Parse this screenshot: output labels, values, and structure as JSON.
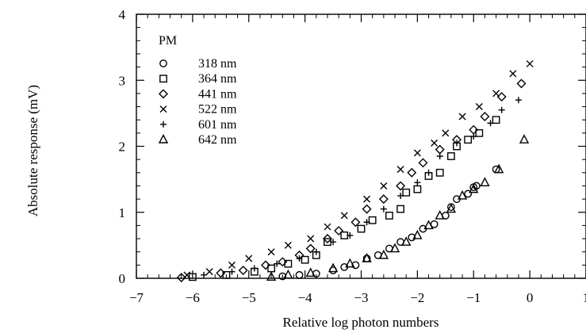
{
  "chart_data": {
    "type": "scatter",
    "title": "",
    "xlabel": "Relative log photon numbers",
    "ylabel": "Absolute response (mV)",
    "xlim": [
      -7,
      1
    ],
    "ylim": [
      0,
      4
    ],
    "x_ticks": [
      -7,
      -6,
      -5,
      -4,
      -3,
      -2,
      -1,
      0,
      1
    ],
    "x_tick_labels": [
      "−7",
      "−6",
      "−5",
      "−4",
      "−3",
      "−2",
      "−1",
      "0",
      "1"
    ],
    "y_ticks": [
      0,
      1,
      2,
      3,
      4
    ],
    "y_tick_labels": [
      "0",
      "1",
      "2",
      "3",
      "4"
    ],
    "grid": false,
    "legend": {
      "title": "PM",
      "placement": "top-left"
    },
    "series": [
      {
        "name": "318 nm",
        "marker": "circle",
        "points": [
          [
            -4.4,
            0.03
          ],
          [
            -4.1,
            0.05
          ],
          [
            -3.8,
            0.07
          ],
          [
            -3.5,
            0.12
          ],
          [
            -3.3,
            0.17
          ],
          [
            -3.1,
            0.2
          ],
          [
            -2.9,
            0.3
          ],
          [
            -2.7,
            0.35
          ],
          [
            -2.5,
            0.45
          ],
          [
            -2.3,
            0.55
          ],
          [
            -2.1,
            0.62
          ],
          [
            -1.9,
            0.75
          ],
          [
            -1.7,
            0.82
          ],
          [
            -1.5,
            0.95
          ],
          [
            -1.4,
            1.08
          ],
          [
            -1.3,
            1.2
          ],
          [
            -1.1,
            1.28
          ],
          [
            -1.0,
            1.38
          ],
          [
            -0.95,
            1.4
          ],
          [
            -0.6,
            1.65
          ]
        ]
      },
      {
        "name": "364 nm",
        "marker": "square",
        "points": [
          [
            -6.0,
            0.02
          ],
          [
            -5.4,
            0.05
          ],
          [
            -4.9,
            0.1
          ],
          [
            -4.6,
            0.15
          ],
          [
            -4.3,
            0.22
          ],
          [
            -4.0,
            0.28
          ],
          [
            -3.8,
            0.35
          ],
          [
            -3.6,
            0.55
          ],
          [
            -3.3,
            0.65
          ],
          [
            -3.0,
            0.75
          ],
          [
            -2.8,
            0.88
          ],
          [
            -2.5,
            0.95
          ],
          [
            -2.3,
            1.05
          ],
          [
            -2.2,
            1.3
          ],
          [
            -2.0,
            1.35
          ],
          [
            -1.8,
            1.55
          ],
          [
            -1.6,
            1.6
          ],
          [
            -1.4,
            1.85
          ],
          [
            -1.3,
            2.0
          ],
          [
            -1.1,
            2.1
          ],
          [
            -0.9,
            2.2
          ],
          [
            -0.6,
            2.4
          ]
        ]
      },
      {
        "name": "441 nm",
        "marker": "diamond",
        "points": [
          [
            -6.2,
            0.01
          ],
          [
            -5.5,
            0.08
          ],
          [
            -5.1,
            0.12
          ],
          [
            -4.7,
            0.2
          ],
          [
            -4.4,
            0.25
          ],
          [
            -4.1,
            0.35
          ],
          [
            -3.9,
            0.45
          ],
          [
            -3.6,
            0.6
          ],
          [
            -3.4,
            0.72
          ],
          [
            -3.1,
            0.85
          ],
          [
            -2.9,
            1.05
          ],
          [
            -2.6,
            1.2
          ],
          [
            -2.3,
            1.4
          ],
          [
            -2.1,
            1.6
          ],
          [
            -1.9,
            1.75
          ],
          [
            -1.6,
            1.95
          ],
          [
            -1.3,
            2.1
          ],
          [
            -1.0,
            2.25
          ],
          [
            -0.8,
            2.45
          ],
          [
            -0.5,
            2.75
          ],
          [
            -0.15,
            2.95
          ]
        ]
      },
      {
        "name": "522 nm",
        "marker": "cross",
        "points": [
          [
            -6.1,
            0.05
          ],
          [
            -5.7,
            0.1
          ],
          [
            -5.3,
            0.2
          ],
          [
            -5.0,
            0.3
          ],
          [
            -4.6,
            0.4
          ],
          [
            -4.3,
            0.5
          ],
          [
            -3.9,
            0.6
          ],
          [
            -3.6,
            0.78
          ],
          [
            -3.3,
            0.95
          ],
          [
            -2.9,
            1.2
          ],
          [
            -2.6,
            1.4
          ],
          [
            -2.3,
            1.65
          ],
          [
            -2.0,
            1.9
          ],
          [
            -1.7,
            2.05
          ],
          [
            -1.5,
            2.2
          ],
          [
            -1.2,
            2.45
          ],
          [
            -0.9,
            2.6
          ],
          [
            -0.6,
            2.8
          ],
          [
            -0.3,
            3.1
          ],
          [
            0.0,
            3.25
          ]
        ]
      },
      {
        "name": "601 nm",
        "marker": "plus",
        "points": [
          [
            -5.8,
            0.05
          ],
          [
            -5.3,
            0.1
          ],
          [
            -4.9,
            0.15
          ],
          [
            -4.5,
            0.22
          ],
          [
            -4.1,
            0.3
          ],
          [
            -3.8,
            0.4
          ],
          [
            -3.5,
            0.55
          ],
          [
            -3.2,
            0.65
          ],
          [
            -2.9,
            0.85
          ],
          [
            -2.6,
            1.05
          ],
          [
            -2.3,
            1.25
          ],
          [
            -2.0,
            1.45
          ],
          [
            -1.8,
            1.6
          ],
          [
            -1.6,
            1.85
          ],
          [
            -1.3,
            2.05
          ],
          [
            -1.0,
            2.15
          ],
          [
            -0.7,
            2.35
          ],
          [
            -0.5,
            2.55
          ],
          [
            -0.2,
            2.7
          ]
        ]
      },
      {
        "name": "642 nm",
        "marker": "triangle",
        "points": [
          [
            -4.6,
            0.02
          ],
          [
            -4.3,
            0.05
          ],
          [
            -3.9,
            0.08
          ],
          [
            -3.5,
            0.15
          ],
          [
            -3.2,
            0.22
          ],
          [
            -2.9,
            0.3
          ],
          [
            -2.6,
            0.35
          ],
          [
            -2.4,
            0.45
          ],
          [
            -2.2,
            0.55
          ],
          [
            -2.0,
            0.65
          ],
          [
            -1.8,
            0.8
          ],
          [
            -1.6,
            0.95
          ],
          [
            -1.4,
            1.05
          ],
          [
            -1.2,
            1.25
          ],
          [
            -1.0,
            1.35
          ],
          [
            -0.8,
            1.45
          ],
          [
            -0.55,
            1.65
          ],
          [
            -0.1,
            2.1
          ]
        ]
      }
    ]
  }
}
